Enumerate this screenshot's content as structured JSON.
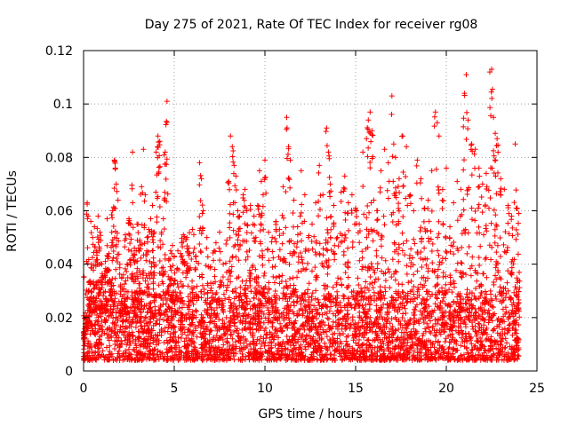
{
  "chart_data": {
    "type": "scatter",
    "title": "Day 275 of 2021, Rate Of TEC Index for receiver rg08",
    "xlabel": "GPS time / hours",
    "ylabel": "ROTI / TECUs",
    "xlim": [
      0,
      25
    ],
    "ylim": [
      0,
      0.12
    ],
    "xticks": [
      0,
      5,
      10,
      15,
      20,
      25
    ],
    "xtick_labels": [
      "0",
      "5",
      "10",
      "15",
      "20",
      "25"
    ],
    "yticks": [
      0,
      0.02,
      0.04,
      0.06,
      0.08,
      0.1,
      0.12
    ],
    "ytick_labels": [
      "0",
      "0.02",
      "0.04",
      "0.06",
      "0.08",
      "0.1",
      "0.12"
    ],
    "grid": true,
    "marker": "plus",
    "color": "#ff0000",
    "series": [
      {
        "points": [
          [
            0.05,
            0.012
          ],
          [
            0.1,
            0.02
          ],
          [
            0.2,
            0.063
          ],
          [
            0.25,
            0.058
          ],
          [
            0.3,
            0.03
          ],
          [
            0.4,
            0.056
          ],
          [
            0.5,
            0.05
          ],
          [
            0.6,
            0.054
          ],
          [
            0.7,
            0.045
          ],
          [
            0.8,
            0.058
          ],
          [
            0.9,
            0.052
          ],
          [
            1.0,
            0.04
          ],
          [
            1.1,
            0.035
          ],
          [
            1.2,
            0.041
          ],
          [
            1.3,
            0.057
          ],
          [
            1.4,
            0.044
          ],
          [
            1.5,
            0.033
          ],
          [
            1.6,
            0.06
          ],
          [
            1.7,
            0.079
          ],
          [
            1.75,
            0.076
          ],
          [
            1.8,
            0.07
          ],
          [
            1.9,
            0.064
          ],
          [
            2.0,
            0.04
          ],
          [
            2.1,
            0.035
          ],
          [
            2.2,
            0.036
          ],
          [
            2.3,
            0.051
          ],
          [
            2.4,
            0.04
          ],
          [
            2.5,
            0.057
          ],
          [
            2.6,
            0.055
          ],
          [
            2.7,
            0.082
          ],
          [
            2.8,
            0.046
          ],
          [
            2.9,
            0.045
          ],
          [
            3.0,
            0.055
          ],
          [
            3.1,
            0.049
          ],
          [
            3.2,
            0.069
          ],
          [
            3.3,
            0.083
          ],
          [
            3.4,
            0.066
          ],
          [
            3.5,
            0.05
          ],
          [
            3.6,
            0.053
          ],
          [
            3.7,
            0.057
          ],
          [
            3.8,
            0.062
          ],
          [
            3.9,
            0.052
          ],
          [
            4.0,
            0.082
          ],
          [
            4.1,
            0.088
          ],
          [
            4.2,
            0.086
          ],
          [
            4.3,
            0.052
          ],
          [
            4.4,
            0.057
          ],
          [
            4.5,
            0.082
          ],
          [
            4.6,
            0.101
          ],
          [
            4.7,
            0.042
          ],
          [
            4.8,
            0.045
          ],
          [
            4.9,
            0.047
          ],
          [
            5.0,
            0.043
          ],
          [
            5.2,
            0.045
          ],
          [
            5.4,
            0.048
          ],
          [
            5.5,
            0.051
          ],
          [
            5.7,
            0.05
          ],
          [
            5.8,
            0.046
          ],
          [
            6.0,
            0.053
          ],
          [
            6.2,
            0.043
          ],
          [
            6.4,
            0.078
          ],
          [
            6.5,
            0.072
          ],
          [
            6.6,
            0.06
          ],
          [
            6.8,
            0.05
          ],
          [
            7.0,
            0.039
          ],
          [
            7.2,
            0.045
          ],
          [
            7.3,
            0.048
          ],
          [
            7.5,
            0.052
          ],
          [
            7.7,
            0.04
          ],
          [
            7.9,
            0.049
          ],
          [
            8.0,
            0.071
          ],
          [
            8.1,
            0.088
          ],
          [
            8.2,
            0.084
          ],
          [
            8.3,
            0.077
          ],
          [
            8.4,
            0.073
          ],
          [
            8.5,
            0.06
          ],
          [
            8.6,
            0.058
          ],
          [
            8.8,
            0.066
          ],
          [
            8.9,
            0.068
          ],
          [
            9.0,
            0.06
          ],
          [
            9.2,
            0.062
          ],
          [
            9.4,
            0.058
          ],
          [
            9.5,
            0.05
          ],
          [
            9.6,
            0.062
          ],
          [
            9.7,
            0.075
          ],
          [
            9.8,
            0.071
          ],
          [
            9.9,
            0.066
          ],
          [
            10.0,
            0.079
          ],
          [
            10.2,
            0.052
          ],
          [
            10.4,
            0.05
          ],
          [
            10.6,
            0.056
          ],
          [
            10.8,
            0.053
          ],
          [
            11.0,
            0.069
          ],
          [
            11.2,
            0.095
          ],
          [
            11.3,
            0.084
          ],
          [
            11.4,
            0.079
          ],
          [
            11.6,
            0.064
          ],
          [
            11.8,
            0.054
          ],
          [
            12.0,
            0.075
          ],
          [
            12.2,
            0.066
          ],
          [
            12.4,
            0.05
          ],
          [
            12.6,
            0.055
          ],
          [
            12.8,
            0.063
          ],
          [
            13.0,
            0.077
          ],
          [
            13.2,
            0.066
          ],
          [
            13.4,
            0.091
          ],
          [
            13.5,
            0.082
          ],
          [
            13.6,
            0.07
          ],
          [
            13.8,
            0.062
          ],
          [
            14.0,
            0.05
          ],
          [
            14.2,
            0.067
          ],
          [
            14.4,
            0.073
          ],
          [
            14.6,
            0.063
          ],
          [
            14.8,
            0.066
          ],
          [
            15.0,
            0.061
          ],
          [
            15.2,
            0.055
          ],
          [
            15.4,
            0.082
          ],
          [
            15.6,
            0.087
          ],
          [
            15.7,
            0.094
          ],
          [
            15.8,
            0.097
          ],
          [
            15.9,
            0.09
          ],
          [
            16.0,
            0.064
          ],
          [
            16.2,
            0.06
          ],
          [
            16.4,
            0.075
          ],
          [
            16.6,
            0.083
          ],
          [
            16.8,
            0.078
          ],
          [
            17.0,
            0.103
          ],
          [
            17.1,
            0.085
          ],
          [
            17.2,
            0.08
          ],
          [
            17.4,
            0.072
          ],
          [
            17.6,
            0.088
          ],
          [
            17.8,
            0.084
          ],
          [
            18.0,
            0.066
          ],
          [
            18.2,
            0.06
          ],
          [
            18.4,
            0.079
          ],
          [
            18.6,
            0.072
          ],
          [
            18.8,
            0.061
          ],
          [
            19.0,
            0.064
          ],
          [
            19.2,
            0.075
          ],
          [
            19.4,
            0.097
          ],
          [
            19.5,
            0.093
          ],
          [
            19.6,
            0.088
          ],
          [
            19.8,
            0.068
          ],
          [
            20.0,
            0.076
          ],
          [
            20.2,
            0.054
          ],
          [
            20.4,
            0.063
          ],
          [
            20.6,
            0.071
          ],
          [
            20.8,
            0.068
          ],
          [
            21.0,
            0.104
          ],
          [
            21.1,
            0.111
          ],
          [
            21.2,
            0.094
          ],
          [
            21.4,
            0.085
          ],
          [
            21.6,
            0.083
          ],
          [
            21.8,
            0.076
          ],
          [
            22.0,
            0.07
          ],
          [
            22.2,
            0.074
          ],
          [
            22.4,
            0.112
          ],
          [
            22.5,
            0.113
          ],
          [
            22.6,
            0.095
          ],
          [
            22.7,
            0.089
          ],
          [
            22.8,
            0.087
          ],
          [
            23.0,
            0.072
          ],
          [
            23.2,
            0.068
          ],
          [
            23.4,
            0.062
          ],
          [
            23.6,
            0.058
          ],
          [
            23.8,
            0.085
          ],
          [
            23.9,
            0.061
          ],
          [
            24.0,
            0.059
          ]
        ]
      }
    ],
    "cloud": {
      "description_free": true,
      "band_low": 0.004,
      "band_high": 0.03
    }
  }
}
